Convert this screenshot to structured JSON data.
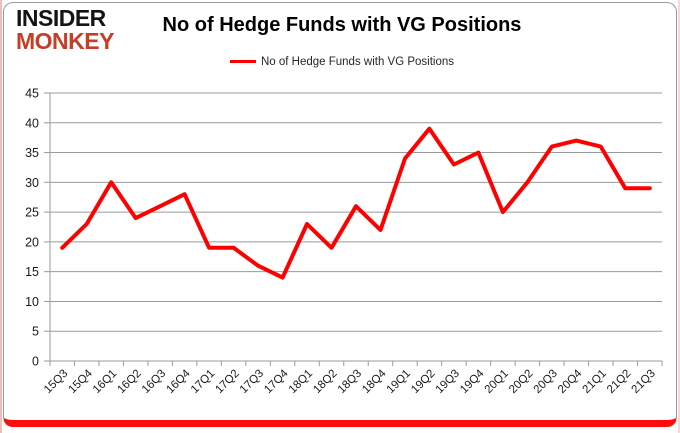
{
  "brand": {
    "line1": "INSIDER",
    "line2": "MONKEY"
  },
  "title": "No of Hedge Funds with VG Positions",
  "legend": {
    "label": "No of Hedge Funds with VG Positions",
    "color": "#ff0000"
  },
  "colors": {
    "accent_red": "#ff0000",
    "brand_red": "#c63d28",
    "card_bottom_bar": "#fd0d0d",
    "grid_gray": "#9a9a9a",
    "text_dark": "#1a1a1a"
  },
  "chart_data": {
    "type": "line",
    "title": "No of Hedge Funds with VG Positions",
    "xlabel": "",
    "ylabel": "",
    "ylim": [
      0,
      45
    ],
    "ytick_interval": 5,
    "grid": true,
    "legend_position": "top",
    "categories": [
      "15Q3",
      "15Q4",
      "16Q1",
      "16Q2",
      "16Q3",
      "16Q4",
      "17Q1",
      "17Q2",
      "17Q3",
      "17Q4",
      "18Q1",
      "18Q2",
      "18Q3",
      "18Q4",
      "19Q1",
      "19Q2",
      "19Q3",
      "19Q4",
      "20Q1",
      "20Q2",
      "20Q3",
      "20Q4",
      "21Q1",
      "21Q2",
      "21Q3"
    ],
    "series": [
      {
        "name": "No of Hedge Funds with VG Positions",
        "color": "#ff0000",
        "values": [
          19,
          23,
          30,
          24,
          26,
          28,
          19,
          19,
          16,
          14,
          23,
          19,
          26,
          22,
          34,
          39,
          33,
          35,
          25,
          30,
          36,
          37,
          36,
          29,
          29
        ]
      }
    ]
  }
}
